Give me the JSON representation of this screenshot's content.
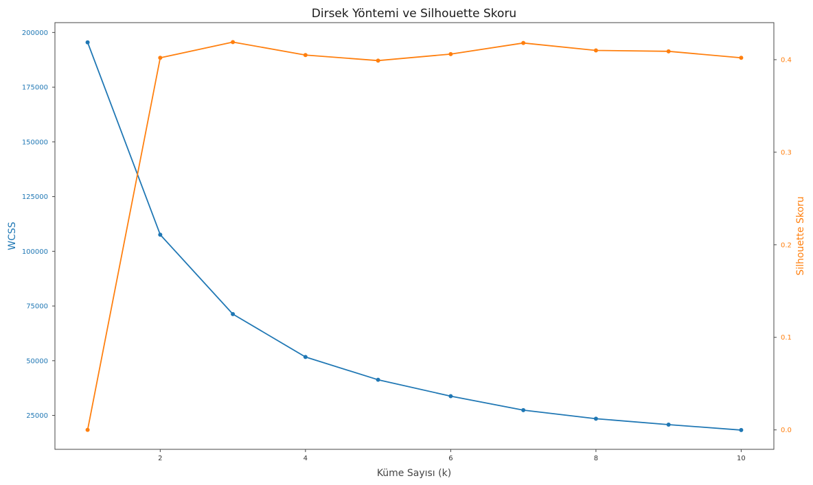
{
  "chart_data": {
    "type": "line",
    "title": "Dirsek Yöntemi ve Silhouette Skoru",
    "xlabel": "Küme Sayısı (k)",
    "ylabel_left": "WCSS",
    "ylabel_right": "Silhouette Skoru",
    "x": [
      1,
      2,
      3,
      4,
      5,
      6,
      7,
      8,
      9,
      10
    ],
    "x_ticks": [
      "2",
      "4",
      "6",
      "8",
      "10"
    ],
    "x_tick_values": [
      2,
      4,
      6,
      8,
      10
    ],
    "xlim": [
      0.55,
      10.45
    ],
    "ylim_left": [
      9500,
      204500
    ],
    "ylim_right": [
      -0.021,
      0.44
    ],
    "y_ticks_left": [
      "25000",
      "50000",
      "75000",
      "100000",
      "125000",
      "150000",
      "175000",
      "200000"
    ],
    "y_tick_values_left": [
      25000,
      50000,
      75000,
      100000,
      125000,
      150000,
      175000,
      200000
    ],
    "y_ticks_right": [
      "0.0",
      "0.1",
      "0.2",
      "0.3",
      "0.4"
    ],
    "y_tick_values_right": [
      0.0,
      0.1,
      0.2,
      0.3,
      0.4
    ],
    "grid": false,
    "series": [
      {
        "axis": "left",
        "color": "#1f77b4",
        "values": [
          195500,
          107600,
          71300,
          51700,
          41300,
          33800,
          27400,
          23500,
          20800,
          18300
        ]
      },
      {
        "axis": "right",
        "color": "#ff7f0e",
        "values": [
          0.0,
          0.402,
          0.419,
          0.405,
          0.399,
          0.406,
          0.418,
          0.41,
          0.409,
          0.402
        ]
      }
    ]
  }
}
